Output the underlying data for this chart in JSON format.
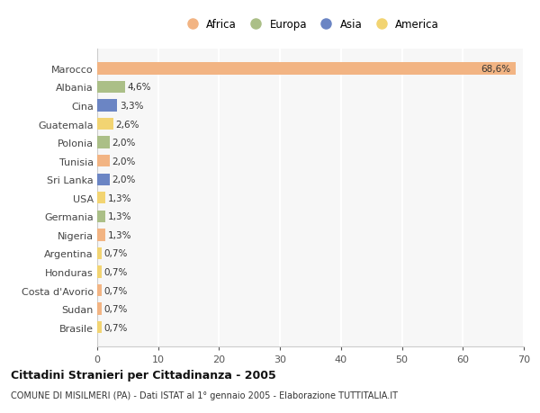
{
  "countries": [
    "Marocco",
    "Albania",
    "Cina",
    "Guatemala",
    "Polonia",
    "Tunisia",
    "Sri Lanka",
    "USA",
    "Germania",
    "Nigeria",
    "Argentina",
    "Honduras",
    "Costa d'Avorio",
    "Sudan",
    "Brasile"
  ],
  "values": [
    68.6,
    4.6,
    3.3,
    2.6,
    2.0,
    2.0,
    2.0,
    1.3,
    1.3,
    1.3,
    0.7,
    0.7,
    0.7,
    0.7,
    0.7
  ],
  "labels": [
    "68,6%",
    "4,6%",
    "3,3%",
    "2,6%",
    "2,0%",
    "2,0%",
    "2,0%",
    "1,3%",
    "1,3%",
    "1,3%",
    "0,7%",
    "0,7%",
    "0,7%",
    "0,7%",
    "0,7%"
  ],
  "continents": [
    "Africa",
    "Europa",
    "Asia",
    "America",
    "Europa",
    "Africa",
    "Asia",
    "America",
    "Europa",
    "Africa",
    "America",
    "America",
    "Africa",
    "Africa",
    "America"
  ],
  "continent_colors": {
    "Africa": "#F2B483",
    "Europa": "#ABBF87",
    "Asia": "#6B85C4",
    "America": "#F2D472"
  },
  "legend_order": [
    "Africa",
    "Europa",
    "Asia",
    "America"
  ],
  "title": "Cittadini Stranieri per Cittadinanza - 2005",
  "subtitle": "COMUNE DI MISILMERI (PA) - Dati ISTAT al 1° gennaio 2005 - Elaborazione TUTTITALIA.IT",
  "xlim": [
    0,
    70
  ],
  "xticks": [
    0,
    10,
    20,
    30,
    40,
    50,
    60,
    70
  ],
  "bg_color": "#ffffff",
  "plot_bg_color": "#f7f7f7",
  "grid_color": "#ffffff",
  "bar_height": 0.65
}
